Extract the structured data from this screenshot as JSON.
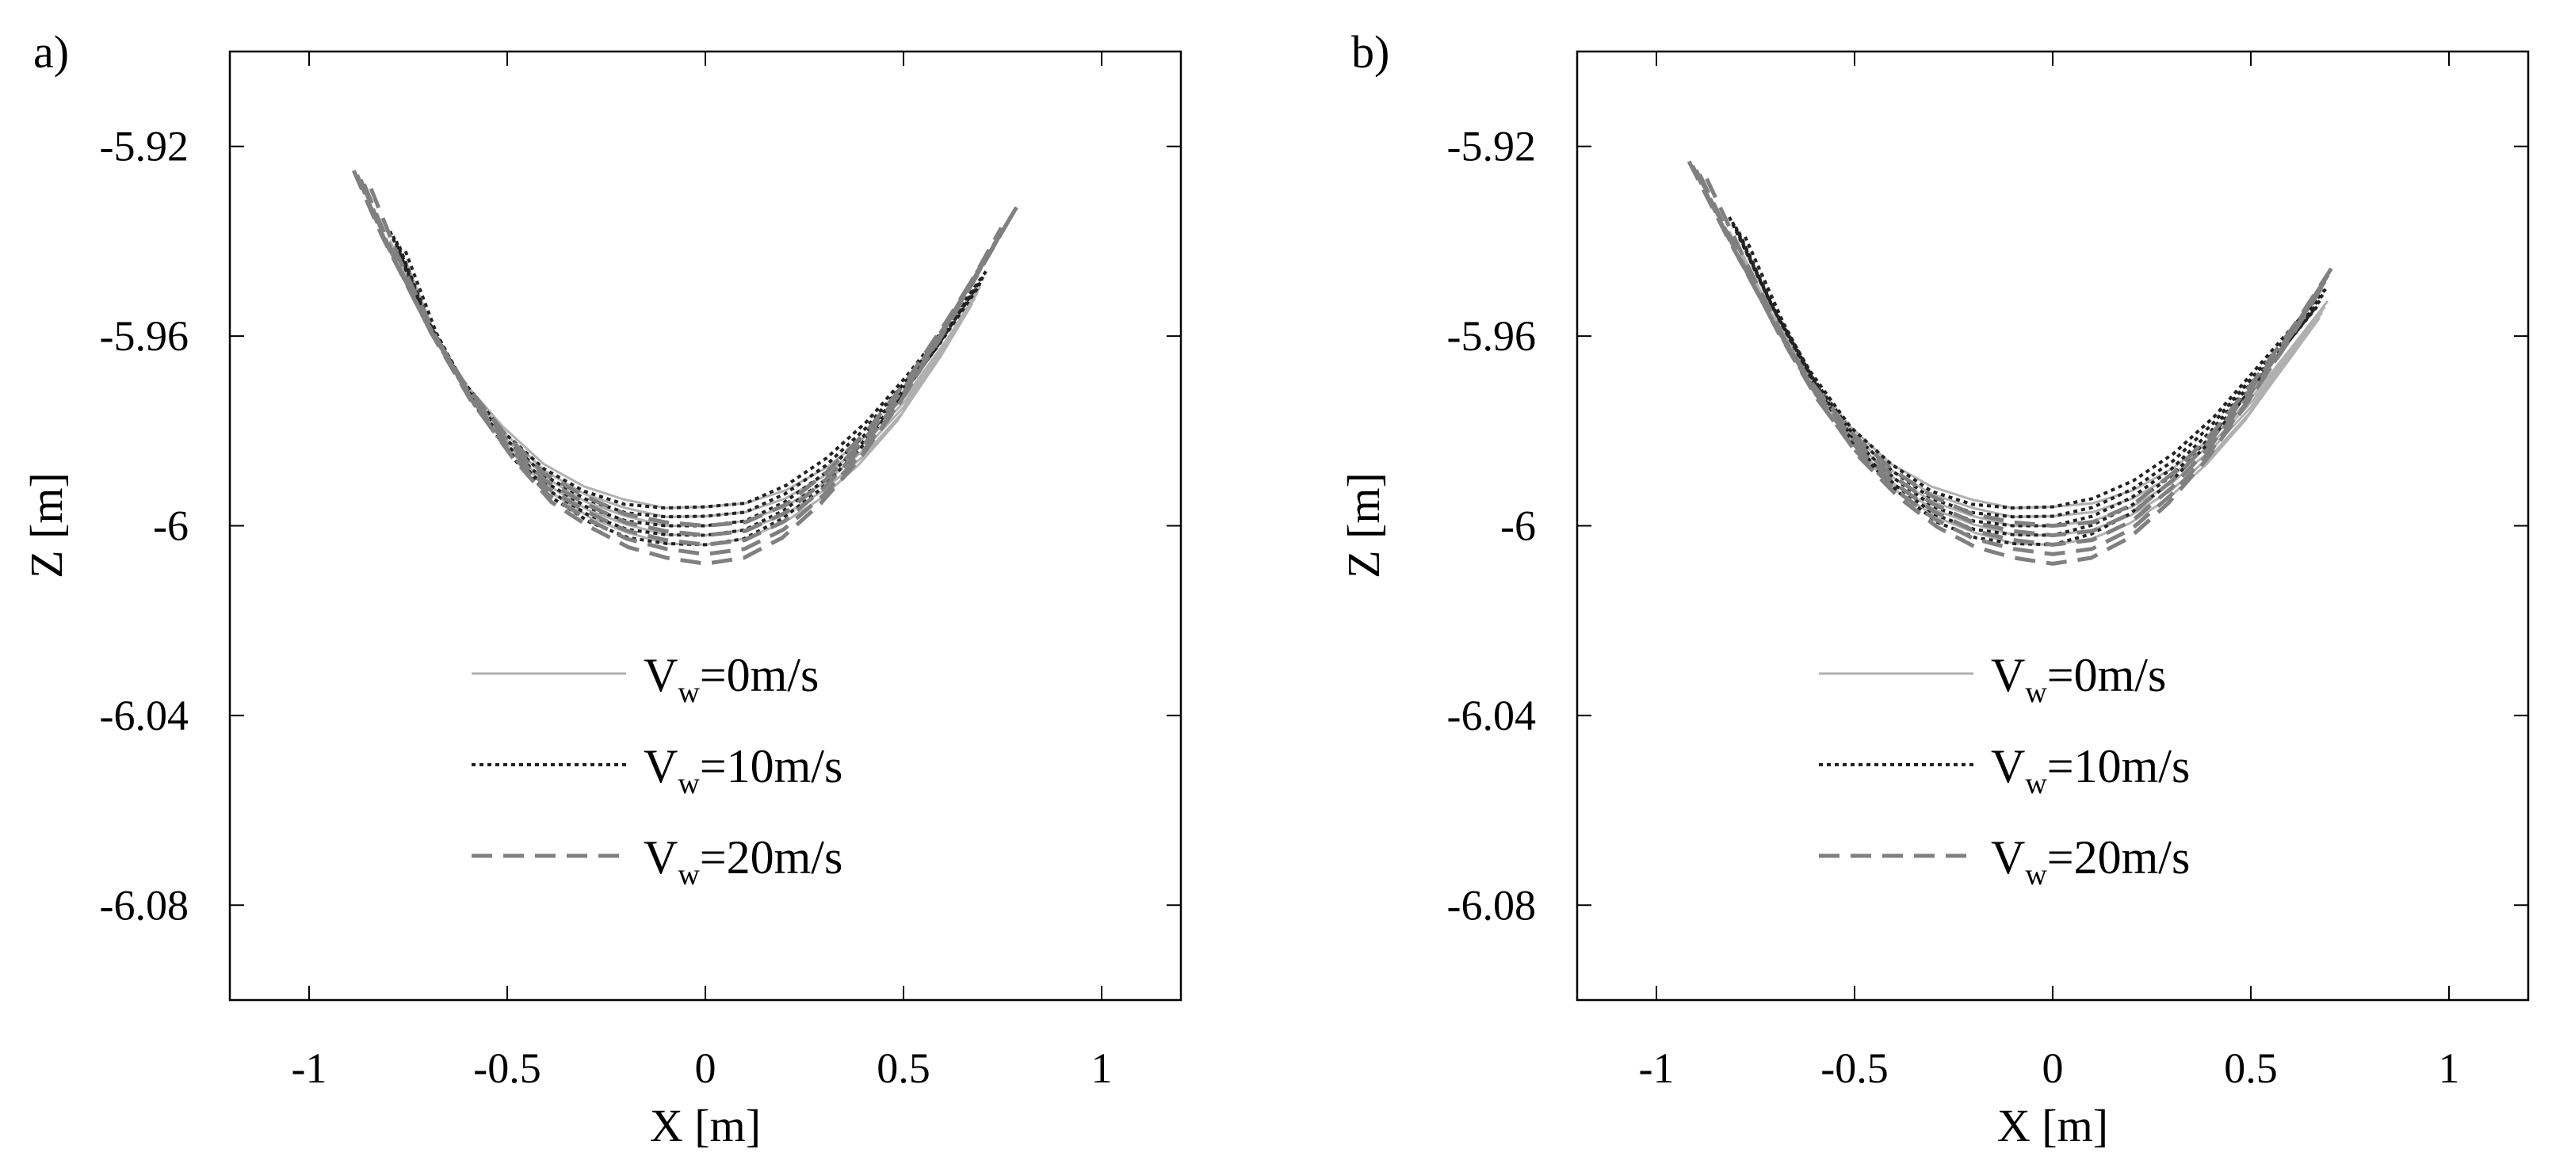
{
  "chart_data": [
    {
      "type": "line",
      "panel_label": "a)",
      "xlabel": "X [m]",
      "ylabel": "Z [m]",
      "xlim": [
        -1.2,
        1.2
      ],
      "ylim": [
        -6.1,
        -5.9
      ],
      "xticks": [
        -1,
        -0.5,
        0,
        0.5,
        1
      ],
      "xtick_labels": [
        "-1",
        "-0.5",
        "0",
        "0.5",
        "1"
      ],
      "yticks": [
        -5.92,
        -5.96,
        -6,
        -6.04,
        -6.08
      ],
      "ytick_labels": [
        "-5.92",
        "-5.96",
        "-6",
        "-6.04",
        "-6.08"
      ],
      "grid": false,
      "legend_position": "lower-center",
      "series": [
        {
          "name": "Vw=0m/s",
          "legend": {
            "main": "V",
            "sub": "w",
            "rest": "=0m/s"
          },
          "style": "solid",
          "color": "#b0b0b0",
          "x": [
            -0.78,
            -0.7,
            -0.6,
            -0.5,
            -0.4,
            -0.3,
            -0.2,
            -0.1,
            0,
            0.1,
            0.2,
            0.3,
            0.4,
            0.5,
            0.6,
            0.68
          ],
          "y": [
            -5.942,
            -5.958,
            -5.972,
            -5.982,
            -5.99,
            -5.995,
            -5.998,
            -6.0,
            -6.0,
            -5.999,
            -5.996,
            -5.991,
            -5.984,
            -5.975,
            -5.963,
            -5.952
          ]
        },
        {
          "name": "Vw=10m/s",
          "legend": {
            "main": "V",
            "sub": "w",
            "rest": "=10m/s"
          },
          "style": "dotted",
          "color": "#222222",
          "x": [
            -0.78,
            -0.7,
            -0.6,
            -0.5,
            -0.4,
            -0.3,
            -0.2,
            -0.1,
            0,
            0.1,
            0.2,
            0.3,
            0.4,
            0.5,
            0.6,
            0.7
          ],
          "y": [
            -5.94,
            -5.957,
            -5.972,
            -5.983,
            -5.991,
            -5.996,
            -5.999,
            -6.0,
            -6.0,
            -5.999,
            -5.995,
            -5.989,
            -5.981,
            -5.971,
            -5.96,
            -5.948
          ]
        },
        {
          "name": "Vw=20m/s",
          "legend": {
            "main": "V",
            "sub": "w",
            "rest": "=20m/s"
          },
          "style": "dashed",
          "color": "#808080",
          "x": [
            -0.87,
            -0.8,
            -0.7,
            -0.6,
            -0.5,
            -0.4,
            -0.3,
            -0.2,
            -0.1,
            0,
            0.1,
            0.2,
            0.3,
            0.4,
            0.5,
            0.6,
            0.7,
            0.77
          ],
          "y": [
            -5.927,
            -5.941,
            -5.958,
            -5.972,
            -5.983,
            -5.992,
            -5.997,
            -6.001,
            -6.003,
            -6.004,
            -6.003,
            -5.999,
            -5.992,
            -5.983,
            -5.972,
            -5.959,
            -5.945,
            -5.935
          ]
        }
      ]
    },
    {
      "type": "line",
      "panel_label": "b)",
      "xlabel": "X [m]",
      "ylabel": "Z [m]",
      "xlim": [
        -1.2,
        1.2
      ],
      "ylim": [
        -6.1,
        -5.9
      ],
      "xticks": [
        -1,
        -0.5,
        0,
        0.5,
        1
      ],
      "xtick_labels": [
        "-1",
        "-0.5",
        "0",
        "0.5",
        "1"
      ],
      "yticks": [
        -5.92,
        -5.96,
        -6,
        -6.04,
        -6.08
      ],
      "ytick_labels": [
        "-5.92",
        "-5.96",
        "-6",
        "-6.04",
        "-6.08"
      ],
      "grid": false,
      "legend_position": "lower-center",
      "series": [
        {
          "name": "Vw=0m/s",
          "legend": {
            "main": "V",
            "sub": "w",
            "rest": "=0m/s"
          },
          "style": "solid",
          "color": "#b0b0b0",
          "x": [
            -0.8,
            -0.7,
            -0.6,
            -0.5,
            -0.4,
            -0.3,
            -0.2,
            -0.1,
            0,
            0.1,
            0.2,
            0.3,
            0.4,
            0.5,
            0.6,
            0.68
          ],
          "y": [
            -5.94,
            -5.957,
            -5.971,
            -5.982,
            -5.99,
            -5.995,
            -5.998,
            -6.0,
            -6.0,
            -5.999,
            -5.996,
            -5.991,
            -5.984,
            -5.975,
            -5.964,
            -5.955
          ]
        },
        {
          "name": "Vw=10m/s",
          "legend": {
            "main": "V",
            "sub": "w",
            "rest": "=10m/s"
          },
          "style": "dotted",
          "color": "#222222",
          "x": [
            -0.8,
            -0.7,
            -0.6,
            -0.5,
            -0.4,
            -0.3,
            -0.2,
            -0.1,
            0,
            0.1,
            0.2,
            0.3,
            0.4,
            0.5,
            0.6,
            0.68
          ],
          "y": [
            -5.937,
            -5.955,
            -5.97,
            -5.982,
            -5.99,
            -5.996,
            -5.999,
            -6.0,
            -6.0,
            -5.998,
            -5.994,
            -5.988,
            -5.98,
            -5.97,
            -5.96,
            -5.952
          ]
        },
        {
          "name": "Vw=20m/s",
          "legend": {
            "main": "V",
            "sub": "w",
            "rest": "=20m/s"
          },
          "style": "dashed",
          "color": "#808080",
          "x": [
            -0.9,
            -0.8,
            -0.7,
            -0.6,
            -0.5,
            -0.4,
            -0.3,
            -0.2,
            -0.1,
            0,
            0.1,
            0.2,
            0.3,
            0.4,
            0.5,
            0.6,
            0.69
          ],
          "y": [
            -5.925,
            -5.942,
            -5.958,
            -5.972,
            -5.983,
            -5.991,
            -5.997,
            -6.001,
            -6.003,
            -6.004,
            -6.003,
            -5.999,
            -5.992,
            -5.983,
            -5.972,
            -5.96,
            -5.948
          ]
        }
      ]
    }
  ]
}
